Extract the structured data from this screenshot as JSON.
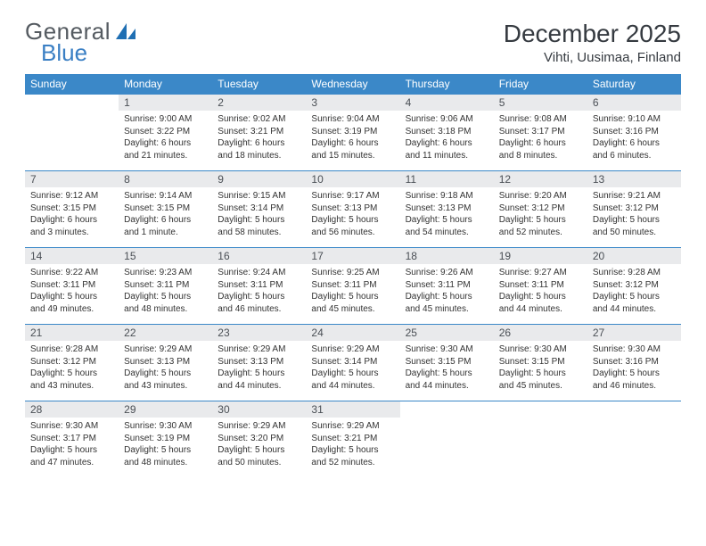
{
  "brand": {
    "word1": "General",
    "word2": "Blue"
  },
  "title": "December 2025",
  "location": "Vihti, Uusimaa, Finland",
  "colors": {
    "header_bg": "#3b88c8",
    "header_text": "#ffffff",
    "daynum_bg": "#e9eaec",
    "text": "#333333",
    "title_text": "#353a40",
    "logo_gray": "#555b61",
    "logo_blue": "#3a7fc4",
    "rule": "#3b88c8"
  },
  "weekdays": [
    "Sunday",
    "Monday",
    "Tuesday",
    "Wednesday",
    "Thursday",
    "Friday",
    "Saturday"
  ],
  "weeks": [
    [
      {
        "n": "",
        "sr": "",
        "ss": "",
        "dl": ""
      },
      {
        "n": "1",
        "sr": "Sunrise: 9:00 AM",
        "ss": "Sunset: 3:22 PM",
        "dl": "Daylight: 6 hours and 21 minutes."
      },
      {
        "n": "2",
        "sr": "Sunrise: 9:02 AM",
        "ss": "Sunset: 3:21 PM",
        "dl": "Daylight: 6 hours and 18 minutes."
      },
      {
        "n": "3",
        "sr": "Sunrise: 9:04 AM",
        "ss": "Sunset: 3:19 PM",
        "dl": "Daylight: 6 hours and 15 minutes."
      },
      {
        "n": "4",
        "sr": "Sunrise: 9:06 AM",
        "ss": "Sunset: 3:18 PM",
        "dl": "Daylight: 6 hours and 11 minutes."
      },
      {
        "n": "5",
        "sr": "Sunrise: 9:08 AM",
        "ss": "Sunset: 3:17 PM",
        "dl": "Daylight: 6 hours and 8 minutes."
      },
      {
        "n": "6",
        "sr": "Sunrise: 9:10 AM",
        "ss": "Sunset: 3:16 PM",
        "dl": "Daylight: 6 hours and 6 minutes."
      }
    ],
    [
      {
        "n": "7",
        "sr": "Sunrise: 9:12 AM",
        "ss": "Sunset: 3:15 PM",
        "dl": "Daylight: 6 hours and 3 minutes."
      },
      {
        "n": "8",
        "sr": "Sunrise: 9:14 AM",
        "ss": "Sunset: 3:15 PM",
        "dl": "Daylight: 6 hours and 1 minute."
      },
      {
        "n": "9",
        "sr": "Sunrise: 9:15 AM",
        "ss": "Sunset: 3:14 PM",
        "dl": "Daylight: 5 hours and 58 minutes."
      },
      {
        "n": "10",
        "sr": "Sunrise: 9:17 AM",
        "ss": "Sunset: 3:13 PM",
        "dl": "Daylight: 5 hours and 56 minutes."
      },
      {
        "n": "11",
        "sr": "Sunrise: 9:18 AM",
        "ss": "Sunset: 3:13 PM",
        "dl": "Daylight: 5 hours and 54 minutes."
      },
      {
        "n": "12",
        "sr": "Sunrise: 9:20 AM",
        "ss": "Sunset: 3:12 PM",
        "dl": "Daylight: 5 hours and 52 minutes."
      },
      {
        "n": "13",
        "sr": "Sunrise: 9:21 AM",
        "ss": "Sunset: 3:12 PM",
        "dl": "Daylight: 5 hours and 50 minutes."
      }
    ],
    [
      {
        "n": "14",
        "sr": "Sunrise: 9:22 AM",
        "ss": "Sunset: 3:11 PM",
        "dl": "Daylight: 5 hours and 49 minutes."
      },
      {
        "n": "15",
        "sr": "Sunrise: 9:23 AM",
        "ss": "Sunset: 3:11 PM",
        "dl": "Daylight: 5 hours and 48 minutes."
      },
      {
        "n": "16",
        "sr": "Sunrise: 9:24 AM",
        "ss": "Sunset: 3:11 PM",
        "dl": "Daylight: 5 hours and 46 minutes."
      },
      {
        "n": "17",
        "sr": "Sunrise: 9:25 AM",
        "ss": "Sunset: 3:11 PM",
        "dl": "Daylight: 5 hours and 45 minutes."
      },
      {
        "n": "18",
        "sr": "Sunrise: 9:26 AM",
        "ss": "Sunset: 3:11 PM",
        "dl": "Daylight: 5 hours and 45 minutes."
      },
      {
        "n": "19",
        "sr": "Sunrise: 9:27 AM",
        "ss": "Sunset: 3:11 PM",
        "dl": "Daylight: 5 hours and 44 minutes."
      },
      {
        "n": "20",
        "sr": "Sunrise: 9:28 AM",
        "ss": "Sunset: 3:12 PM",
        "dl": "Daylight: 5 hours and 44 minutes."
      }
    ],
    [
      {
        "n": "21",
        "sr": "Sunrise: 9:28 AM",
        "ss": "Sunset: 3:12 PM",
        "dl": "Daylight: 5 hours and 43 minutes."
      },
      {
        "n": "22",
        "sr": "Sunrise: 9:29 AM",
        "ss": "Sunset: 3:13 PM",
        "dl": "Daylight: 5 hours and 43 minutes."
      },
      {
        "n": "23",
        "sr": "Sunrise: 9:29 AM",
        "ss": "Sunset: 3:13 PM",
        "dl": "Daylight: 5 hours and 44 minutes."
      },
      {
        "n": "24",
        "sr": "Sunrise: 9:29 AM",
        "ss": "Sunset: 3:14 PM",
        "dl": "Daylight: 5 hours and 44 minutes."
      },
      {
        "n": "25",
        "sr": "Sunrise: 9:30 AM",
        "ss": "Sunset: 3:15 PM",
        "dl": "Daylight: 5 hours and 44 minutes."
      },
      {
        "n": "26",
        "sr": "Sunrise: 9:30 AM",
        "ss": "Sunset: 3:15 PM",
        "dl": "Daylight: 5 hours and 45 minutes."
      },
      {
        "n": "27",
        "sr": "Sunrise: 9:30 AM",
        "ss": "Sunset: 3:16 PM",
        "dl": "Daylight: 5 hours and 46 minutes."
      }
    ],
    [
      {
        "n": "28",
        "sr": "Sunrise: 9:30 AM",
        "ss": "Sunset: 3:17 PM",
        "dl": "Daylight: 5 hours and 47 minutes."
      },
      {
        "n": "29",
        "sr": "Sunrise: 9:30 AM",
        "ss": "Sunset: 3:19 PM",
        "dl": "Daylight: 5 hours and 48 minutes."
      },
      {
        "n": "30",
        "sr": "Sunrise: 9:29 AM",
        "ss": "Sunset: 3:20 PM",
        "dl": "Daylight: 5 hours and 50 minutes."
      },
      {
        "n": "31",
        "sr": "Sunrise: 9:29 AM",
        "ss": "Sunset: 3:21 PM",
        "dl": "Daylight: 5 hours and 52 minutes."
      },
      {
        "n": "",
        "sr": "",
        "ss": "",
        "dl": ""
      },
      {
        "n": "",
        "sr": "",
        "ss": "",
        "dl": ""
      },
      {
        "n": "",
        "sr": "",
        "ss": "",
        "dl": ""
      }
    ]
  ]
}
